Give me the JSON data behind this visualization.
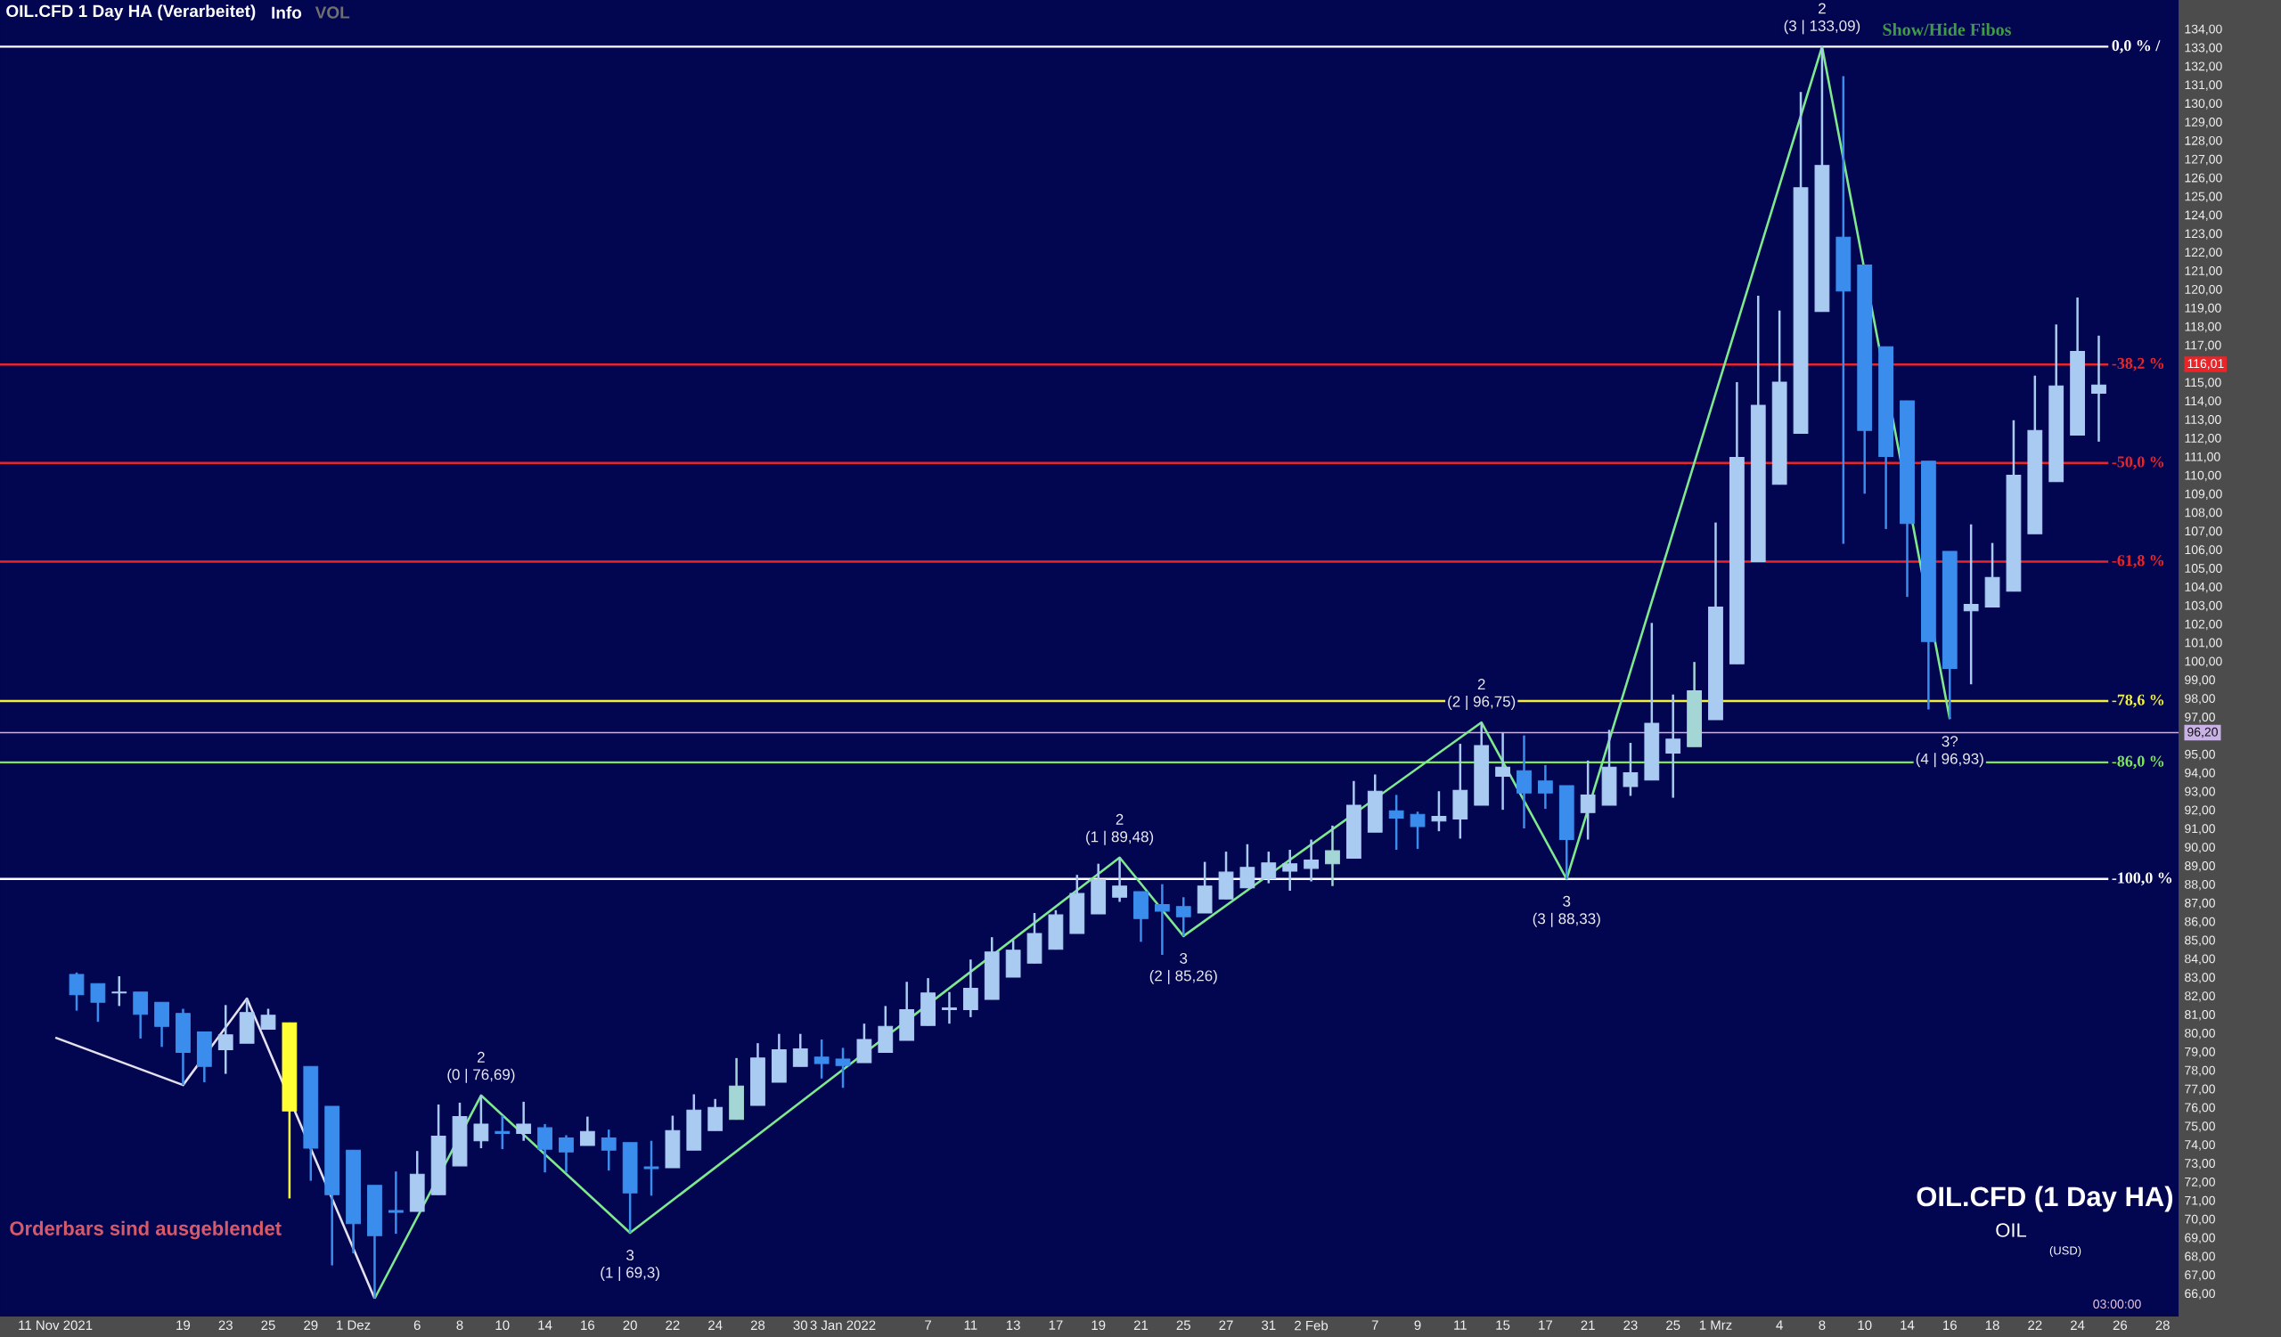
{
  "chart_data": {
    "type": "candlestick",
    "title": "OIL.CFD 1 Day HA (Verarbeitet)",
    "categories": [
      "11 Nov 2021",
      null,
      null,
      null,
      null,
      null,
      "19",
      null,
      "23",
      null,
      "25",
      null,
      "29",
      null,
      "1 Dez",
      null,
      null,
      "6",
      null,
      "8",
      null,
      "10",
      null,
      "14",
      null,
      "16",
      null,
      "20",
      null,
      "22",
      null,
      "24",
      null,
      "28",
      null,
      "30",
      null,
      "3 Jan 2022",
      null,
      null,
      null,
      "7",
      null,
      "11",
      null,
      "13",
      null,
      "17",
      null,
      "19",
      null,
      "21",
      null,
      "25",
      null,
      "27",
      null,
      "31",
      null,
      "2 Feb",
      null,
      null,
      "7",
      null,
      "9",
      null,
      "11",
      null,
      "15",
      null,
      "17",
      null,
      "21",
      null,
      "23",
      null,
      "25",
      null,
      "1 Mrz",
      null,
      null,
      "4",
      null,
      "8",
      null,
      "10",
      null,
      "14",
      null,
      "16",
      null,
      "18",
      null,
      "22",
      null,
      "24",
      null,
      "26",
      null,
      "28"
    ],
    "ohlc": [
      null,
      [
        83.2,
        83.3,
        81.25,
        82.1
      ],
      [
        82.7,
        82.7,
        80.65,
        81.7
      ],
      [
        82.2,
        83.1,
        81.5,
        82.25
      ],
      [
        82.25,
        82.25,
        79.75,
        81.05
      ],
      [
        81.7,
        81.7,
        79.3,
        80.4
      ],
      [
        81.1,
        81.35,
        77.25,
        79.0
      ],
      [
        80.1,
        80.1,
        77.4,
        78.25
      ],
      [
        79.15,
        81.55,
        77.85,
        79.95
      ],
      [
        79.5,
        81.9,
        79.5,
        81.15
      ],
      [
        80.25,
        81.35,
        80.25,
        81.0
      ],
      [
        80.6,
        80.6,
        71.15,
        75.85
      ],
      [
        78.25,
        78.25,
        72.1,
        73.85
      ],
      [
        76.1,
        76.1,
        67.55,
        71.35
      ],
      [
        73.75,
        73.75,
        68.2,
        69.8
      ],
      [
        71.85,
        71.85,
        65.77,
        69.15
      ],
      [
        70.5,
        72.6,
        69.25,
        70.4
      ],
      [
        70.45,
        73.7,
        70.45,
        72.45
      ],
      [
        71.35,
        76.2,
        71.35,
        74.5
      ],
      [
        72.9,
        76.3,
        72.9,
        75.55
      ],
      [
        74.25,
        76.69,
        73.85,
        75.15
      ],
      [
        74.75,
        75.6,
        73.8,
        74.65
      ],
      [
        74.65,
        76.35,
        74.25,
        75.15
      ],
      [
        74.95,
        75.15,
        72.55,
        73.8
      ],
      [
        74.4,
        74.55,
        72.55,
        73.65
      ],
      [
        74.0,
        75.55,
        74.0,
        74.75
      ],
      [
        74.4,
        74.85,
        72.65,
        73.75
      ],
      [
        74.15,
        74.15,
        69.3,
        71.45
      ],
      [
        72.85,
        74.25,
        71.3,
        72.75
      ],
      [
        72.8,
        75.6,
        72.8,
        74.8
      ],
      [
        73.75,
        76.75,
        73.75,
        75.9
      ],
      [
        74.8,
        76.5,
        74.8,
        76.05
      ],
      [
        75.4,
        78.7,
        75.4,
        77.2
      ],
      [
        76.15,
        79.5,
        76.15,
        78.7
      ],
      [
        77.4,
        80.0,
        77.4,
        79.15
      ],
      [
        78.25,
        80.0,
        78.25,
        79.2
      ],
      [
        78.75,
        79.7,
        77.6,
        78.4
      ],
      [
        78.65,
        79.25,
        77.1,
        78.3
      ],
      [
        78.45,
        80.55,
        78.45,
        79.7
      ],
      [
        79.0,
        81.5,
        79.0,
        80.4
      ],
      [
        79.65,
        82.8,
        79.65,
        81.3
      ],
      [
        80.45,
        83.0,
        80.45,
        82.2
      ],
      [
        81.3,
        82.25,
        80.55,
        81.4
      ],
      [
        81.3,
        84.0,
        80.9,
        82.45
      ],
      [
        81.85,
        85.2,
        81.85,
        84.4
      ],
      [
        83.05,
        85.05,
        83.05,
        84.5
      ],
      [
        83.8,
        86.5,
        83.8,
        85.4
      ],
      [
        84.55,
        86.65,
        84.55,
        86.4
      ],
      [
        85.4,
        88.55,
        85.4,
        87.55
      ],
      [
        86.45,
        89.15,
        86.45,
        88.3
      ],
      [
        87.35,
        89.48,
        87.1,
        87.95
      ],
      [
        87.65,
        87.65,
        84.95,
        86.2
      ],
      [
        86.95,
        88.05,
        84.25,
        86.6
      ],
      [
        86.85,
        87.35,
        85.26,
        86.3
      ],
      [
        86.5,
        89.25,
        86.5,
        87.95
      ],
      [
        87.25,
        89.8,
        87.25,
        88.7
      ],
      [
        87.85,
        90.2,
        87.85,
        88.95
      ],
      [
        88.35,
        89.8,
        88.1,
        89.2
      ],
      [
        88.75,
        89.9,
        87.7,
        89.15
      ],
      [
        88.9,
        90.45,
        88.2,
        89.35
      ],
      [
        89.15,
        91.2,
        87.95,
        89.85
      ],
      [
        89.45,
        93.6,
        89.45,
        92.3
      ],
      [
        90.85,
        93.95,
        90.85,
        93.05
      ],
      [
        92.0,
        92.85,
        89.9,
        91.6
      ],
      [
        91.8,
        91.95,
        89.95,
        91.15
      ],
      [
        91.45,
        93.05,
        90.9,
        91.7
      ],
      [
        91.55,
        95.6,
        90.5,
        93.1
      ],
      [
        92.3,
        96.75,
        92.3,
        95.5
      ],
      [
        93.85,
        96.2,
        92.05,
        94.35
      ],
      [
        94.15,
        96.05,
        91.05,
        92.95
      ],
      [
        93.6,
        94.45,
        92.1,
        92.95
      ],
      [
        93.35,
        93.35,
        88.33,
        90.45
      ],
      [
        91.9,
        94.7,
        90.45,
        92.85
      ],
      [
        92.3,
        96.35,
        92.3,
        94.35
      ],
      [
        93.3,
        95.65,
        92.8,
        94.05
      ],
      [
        93.65,
        102.1,
        93.65,
        96.7
      ],
      [
        95.1,
        98.25,
        92.7,
        95.85
      ],
      [
        95.45,
        100.0,
        95.45,
        98.45
      ],
      [
        96.9,
        107.5,
        96.9,
        102.95
      ],
      [
        99.9,
        115.05,
        99.9,
        111.0
      ],
      [
        105.4,
        119.7,
        105.4,
        113.8
      ],
      [
        109.55,
        118.9,
        109.55,
        115.05
      ],
      [
        112.3,
        130.65,
        112.3,
        125.5
      ],
      [
        118.85,
        133.09,
        118.85,
        126.7
      ],
      [
        122.85,
        131.5,
        106.35,
        119.95
      ],
      [
        121.35,
        121.35,
        109.05,
        112.45
      ],
      [
        116.95,
        116.95,
        107.15,
        111.05
      ],
      [
        114.05,
        114.05,
        103.5,
        107.45
      ],
      [
        110.8,
        110.8,
        97.45,
        101.1
      ],
      [
        105.95,
        105.95,
        96.93,
        99.65
      ],
      [
        102.75,
        107.4,
        98.8,
        103.1
      ],
      [
        102.95,
        106.4,
        102.95,
        104.55
      ],
      [
        103.8,
        113.0,
        103.8,
        110.05
      ],
      [
        106.9,
        115.4,
        106.9,
        112.45
      ],
      [
        109.7,
        118.15,
        109.7,
        114.85
      ],
      [
        112.2,
        119.6,
        112.2,
        116.7
      ],
      [
        114.45,
        117.55,
        111.85,
        114.9
      ],
      null,
      null,
      null
    ],
    "colors": [
      null,
      "#3b8ded",
      "#3b8ded",
      "#a9cbf2",
      "#3b8ded",
      "#3b8ded",
      "#3b8ded",
      "#3b8ded",
      "#a9cbf2",
      "#a9cbf2",
      "#a9cbf2",
      "#ffff33",
      "#3b8ded",
      "#3b8ded",
      "#3b8ded",
      "#3b8ded",
      "#3b8ded",
      "#a9cbf2",
      "#a9cbf2",
      "#a9cbf2",
      "#a9cbf2",
      "#3b8ded",
      "#a9cbf2",
      "#3b8ded",
      "#3b8ded",
      "#a9cbf2",
      "#3b8ded",
      "#3b8ded",
      "#3b8ded",
      "#a9cbf2",
      "#a9cbf2",
      "#a9cbf2",
      "#a3d6d4",
      "#a9cbf2",
      "#a9cbf2",
      "#a9cbf2",
      "#3b8ded",
      "#3b8ded",
      "#a9cbf2",
      "#a9cbf2",
      "#a9cbf2",
      "#a9cbf2",
      "#a9cbf2",
      "#a9cbf2",
      "#a9cbf2",
      "#a9cbf2",
      "#a9cbf2",
      "#a9cbf2",
      "#a9cbf2",
      "#a9cbf2",
      "#a9cbf2",
      "#3b8ded",
      "#3b8ded",
      "#3b8ded",
      "#a9cbf2",
      "#a9cbf2",
      "#a9cbf2",
      "#a9cbf2",
      "#a9cbf2",
      "#a9cbf2",
      "#a3d6d4",
      "#a9cbf2",
      "#a9cbf2",
      "#3b8ded",
      "#3b8ded",
      "#a9cbf2",
      "#a9cbf2",
      "#a9cbf2",
      "#a9cbf2",
      "#3b8ded",
      "#3b8ded",
      "#3b8ded",
      "#a9cbf2",
      "#a9cbf2",
      "#a9cbf2",
      "#a9cbf2",
      "#a9cbf2",
      "#a3d6d4",
      "#a9cbf2",
      "#a9cbf2",
      "#a9cbf2",
      "#a9cbf2",
      "#a9cbf2",
      "#a9cbf2",
      "#3b8ded",
      "#3b8ded",
      "#3b8ded",
      "#3b8ded",
      "#3b8ded",
      "#3b8ded",
      "#a9cbf2",
      "#a9cbf2",
      "#a9cbf2",
      "#a9cbf2",
      "#a9cbf2",
      "#a9cbf2",
      "#a9cbf2",
      null,
      null,
      null
    ],
    "series": [
      {
        "type": "line",
        "color": "#e4e0ec",
        "values": [
          79.8,
          null,
          null,
          null,
          null,
          null,
          77.25,
          null,
          null,
          81.9,
          null,
          null,
          null,
          null,
          null,
          65.77,
          null,
          null,
          null,
          null,
          null,
          null,
          null,
          null,
          null,
          null,
          null,
          null,
          null,
          null,
          null,
          null,
          null,
          null,
          null,
          null,
          null,
          null,
          null,
          null,
          null,
          null,
          null,
          null,
          null,
          null,
          null,
          null,
          null,
          null,
          null,
          null,
          null,
          null,
          null,
          null,
          null,
          null,
          null,
          null,
          null,
          null,
          null,
          null,
          null,
          null,
          null,
          null,
          null,
          null,
          null,
          null,
          null,
          null,
          null,
          null,
          null,
          null,
          null,
          null,
          null,
          null,
          null,
          null,
          null,
          null,
          null,
          null,
          null,
          null,
          null,
          null,
          null,
          null,
          null,
          null,
          null,
          null,
          null,
          null
        ]
      },
      {
        "type": "line",
        "color": "#7ee88e",
        "values": [
          null,
          null,
          null,
          null,
          null,
          null,
          null,
          null,
          null,
          null,
          null,
          null,
          null,
          null,
          null,
          65.77,
          null,
          null,
          null,
          null,
          76.69,
          null,
          null,
          null,
          null,
          null,
          null,
          69.3,
          null,
          null,
          null,
          null,
          null,
          null,
          null,
          null,
          null,
          null,
          null,
          null,
          null,
          null,
          null,
          null,
          null,
          null,
          null,
          null,
          null,
          null,
          89.48,
          null,
          null,
          85.26,
          null,
          null,
          null,
          null,
          null,
          null,
          null,
          null,
          null,
          null,
          null,
          null,
          null,
          96.75,
          null,
          null,
          null,
          88.33,
          null,
          null,
          null,
          null,
          null,
          null,
          null,
          null,
          null,
          null,
          null,
          133.09,
          null,
          null,
          null,
          null,
          null,
          96.93,
          null,
          null,
          null,
          null,
          null,
          null,
          null,
          null,
          null,
          null
        ]
      }
    ],
    "ylim": [
      64.8,
      135.6
    ],
    "yticks": [
      {
        "value": 66,
        "label": "66,00"
      },
      {
        "value": 67,
        "label": "67,00"
      },
      {
        "value": 68,
        "label": "68,00"
      },
      {
        "value": 69,
        "label": "69,00"
      },
      {
        "value": 70,
        "label": "70,00"
      },
      {
        "value": 71,
        "label": "71,00"
      },
      {
        "value": 72,
        "label": "72,00"
      },
      {
        "value": 73,
        "label": "73,00"
      },
      {
        "value": 74,
        "label": "74,00"
      },
      {
        "value": 75,
        "label": "75,00"
      },
      {
        "value": 76,
        "label": "76,00"
      },
      {
        "value": 77,
        "label": "77,00"
      },
      {
        "value": 78,
        "label": "78,00"
      },
      {
        "value": 79,
        "label": "79,00"
      },
      {
        "value": 80,
        "label": "80,00"
      },
      {
        "value": 81,
        "label": "81,00"
      },
      {
        "value": 82,
        "label": "82,00"
      },
      {
        "value": 83,
        "label": "83,00"
      },
      {
        "value": 84,
        "label": "84,00"
      },
      {
        "value": 85,
        "label": "85,00"
      },
      {
        "value": 86,
        "label": "86,00"
      },
      {
        "value": 87,
        "label": "87,00"
      },
      {
        "value": 88,
        "label": "88,00"
      },
      {
        "value": 89,
        "label": "89,00"
      },
      {
        "value": 90,
        "label": "90,00"
      },
      {
        "value": 91,
        "label": "91,00"
      },
      {
        "value": 92,
        "label": "92,00"
      },
      {
        "value": 93,
        "label": "93,00"
      },
      {
        "value": 94,
        "label": "94,00"
      },
      {
        "value": 95,
        "label": "95,00"
      },
      {
        "value": 96.2,
        "label": "96,20"
      },
      {
        "value": 97,
        "label": "97,00"
      },
      {
        "value": 98,
        "label": "98,00"
      },
      {
        "value": 99,
        "label": "99,00"
      },
      {
        "value": 100,
        "label": "100,00"
      },
      {
        "value": 101,
        "label": "101,00"
      },
      {
        "value": 102,
        "label": "102,00"
      },
      {
        "value": 103,
        "label": "103,00"
      },
      {
        "value": 104,
        "label": "104,00"
      },
      {
        "value": 105,
        "label": "105,00"
      },
      {
        "value": 106,
        "label": "106,00"
      },
      {
        "value": 107,
        "label": "107,00"
      },
      {
        "value": 108,
        "label": "108,00"
      },
      {
        "value": 109,
        "label": "109,00"
      },
      {
        "value": 110,
        "label": "110,00"
      },
      {
        "value": 111,
        "label": "111,00"
      },
      {
        "value": 112,
        "label": "112,00"
      },
      {
        "value": 113,
        "label": "113,00"
      },
      {
        "value": 114,
        "label": "114,00"
      },
      {
        "value": 115,
        "label": "115,00"
      },
      {
        "value": 116.01,
        "label": "116,01"
      },
      {
        "value": 117,
        "label": "117,00"
      },
      {
        "value": 118,
        "label": "118,00"
      },
      {
        "value": 119,
        "label": "119,00"
      },
      {
        "value": 120,
        "label": "120,00"
      },
      {
        "value": 121,
        "label": "121,00"
      },
      {
        "value": 122,
        "label": "122,00"
      },
      {
        "value": 123,
        "label": "123,00"
      },
      {
        "value": 124,
        "label": "124,00"
      },
      {
        "value": 125,
        "label": "125,00"
      },
      {
        "value": 126,
        "label": "126,00"
      },
      {
        "value": 127,
        "label": "127,00"
      },
      {
        "value": 128,
        "label": "128,00"
      },
      {
        "value": 129,
        "label": "129,00"
      },
      {
        "value": 130,
        "label": "130,00"
      },
      {
        "value": 131,
        "label": "131,00"
      },
      {
        "value": 132,
        "label": "132,00"
      },
      {
        "value": 133,
        "label": "133,00"
      },
      {
        "value": 134,
        "label": "134,00"
      }
    ],
    "ref_lines": [
      {
        "axis": "y",
        "value": 133.09,
        "color": "#ffffff"
      },
      {
        "axis": "y",
        "value": 116.0,
        "color": "#e8262a"
      },
      {
        "axis": "y",
        "value": 110.7,
        "color": "#e8262a"
      },
      {
        "axis": "y",
        "value": 105.4,
        "color": "#e8262a"
      },
      {
        "axis": "y",
        "value": 97.9,
        "color": "#f2f03c"
      },
      {
        "axis": "y",
        "value": 94.6,
        "color": "#7ee45c"
      },
      {
        "axis": "y",
        "value": 88.33,
        "color": "#ffffff"
      },
      {
        "axis": "y",
        "value": 96.2,
        "color": "#c9b2e6"
      }
    ],
    "annotations": [
      "Info",
      "VOL",
      "Show/Hide Fibos",
      "OIL.CFD (1 Day HA)",
      "OIL",
      "(USD)",
      "Orderbars sind ausgeblendet",
      "03:00:00",
      "0,0 % /",
      "-38,2 %",
      "-50,0 %",
      "-61,8 %",
      "-78,6 %",
      "-86,0 %",
      "-100,0 %",
      {
        "text": "2",
        "y": 76.69
      },
      {
        "text": "(0 | 76,69)",
        "y": 76.69
      },
      {
        "text": "3",
        "y": 69.3
      },
      {
        "text": "(1 | 69,3)",
        "y": 69.3
      },
      {
        "text": "2",
        "y": 89.48
      },
      {
        "text": "(1 | 89,48)",
        "y": 89.48
      },
      {
        "text": "3",
        "y": 85.26
      },
      {
        "text": "(2 | 85,26)",
        "y": 85.26
      },
      {
        "text": "2",
        "y": 96.75
      },
      {
        "text": "(2 | 96,75)",
        "y": 96.75
      },
      {
        "text": "3",
        "y": 88.33
      },
      {
        "text": "(3 | 88,33)",
        "y": 88.33
      },
      {
        "text": "2",
        "y": 133.09
      },
      {
        "text": "(3 | 133,09)",
        "y": 133.09
      },
      {
        "text": "3?",
        "y": 96.93
      },
      {
        "text": "(4 | 96,93)",
        "y": 96.93
      }
    ]
  }
}
